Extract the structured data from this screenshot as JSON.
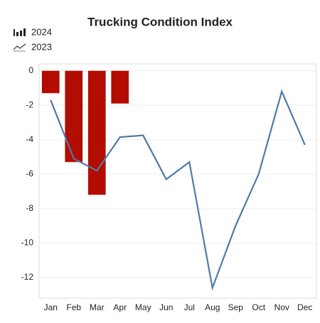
{
  "chart_data": {
    "type": "bar",
    "title": "Trucking Condition Index",
    "categories": [
      "Jan",
      "Feb",
      "Mar",
      "Apr",
      "May",
      "Jun",
      "Jul",
      "Aug",
      "Sep",
      "Oct",
      "Nov",
      "Dec"
    ],
    "series": [
      {
        "name": "2024",
        "type": "bar",
        "color": "#b30c00",
        "values": [
          -1.3,
          -5.3,
          -7.2,
          -1.9,
          null,
          null,
          null,
          null,
          null,
          null,
          null,
          null
        ]
      },
      {
        "name": "2023",
        "type": "line",
        "color": "#4f7aa8",
        "values": [
          -1.7,
          -5.1,
          -5.8,
          -3.85,
          -3.75,
          -6.3,
          -5.3,
          -12.6,
          -9.0,
          -6.0,
          -1.2,
          -4.3
        ]
      }
    ],
    "ylim": [
      -13.2,
      0.4
    ],
    "yticks": [
      0,
      -2,
      -4,
      -6,
      -8,
      -10,
      -12
    ],
    "grid": true
  }
}
